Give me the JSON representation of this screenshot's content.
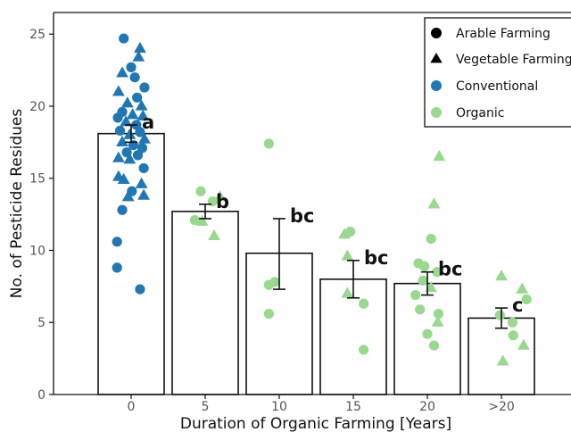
{
  "chart_data": {
    "type": "bar",
    "title": "",
    "xlabel": "Duration of Organic Farming [Years]",
    "ylabel": "No. of Pesticide Residues",
    "ylim": [
      0,
      26.5
    ],
    "yticks": [
      "0",
      "5",
      "10",
      "15",
      "20",
      "25"
    ],
    "categories": [
      "0",
      "5",
      "10",
      "15",
      "20",
      ">20"
    ],
    "values": [
      18.1,
      12.7,
      9.8,
      8.0,
      7.7,
      5.3
    ],
    "error_low": [
      17.5,
      12.2,
      7.3,
      6.7,
      6.9,
      4.6
    ],
    "error_high": [
      18.7,
      13.2,
      12.2,
      9.3,
      8.5,
      6.0
    ],
    "significance_labels": [
      "a",
      "b",
      "bc",
      "bc",
      "bc",
      "c"
    ],
    "legend": {
      "position": "top-right",
      "items": [
        {
          "label": "Arable Farming",
          "shape": "circle",
          "color": "#000000"
        },
        {
          "label": "Vegetable Farming",
          "shape": "triangle",
          "color": "#000000"
        },
        {
          "label": "Conventional",
          "shape": "circle",
          "color": "#1f77b4"
        },
        {
          "label": "Organic",
          "shape": "circle",
          "color": "#98d98e"
        }
      ]
    },
    "colors": {
      "conventional": "#1f77b4",
      "organic": "#98d98e"
    },
    "points": [
      {
        "x": "0",
        "offset": -0.1,
        "y": 24.7,
        "shape": "circle",
        "system": "conventional"
      },
      {
        "x": "0",
        "offset": 0.12,
        "y": 24.0,
        "shape": "triangle",
        "system": "conventional"
      },
      {
        "x": "0",
        "offset": 0.1,
        "y": 23.4,
        "shape": "triangle",
        "system": "conventional"
      },
      {
        "x": "0",
        "offset": 0.0,
        "y": 22.7,
        "shape": "circle",
        "system": "conventional"
      },
      {
        "x": "0",
        "offset": -0.12,
        "y": 22.3,
        "shape": "triangle",
        "system": "conventional"
      },
      {
        "x": "0",
        "offset": 0.05,
        "y": 22.0,
        "shape": "circle",
        "system": "conventional"
      },
      {
        "x": "0",
        "offset": 0.18,
        "y": 21.3,
        "shape": "circle",
        "system": "conventional"
      },
      {
        "x": "0",
        "offset": -0.17,
        "y": 21.0,
        "shape": "triangle",
        "system": "conventional"
      },
      {
        "x": "0",
        "offset": 0.08,
        "y": 20.6,
        "shape": "circle",
        "system": "conventional"
      },
      {
        "x": "0",
        "offset": -0.05,
        "y": 20.2,
        "shape": "triangle",
        "system": "conventional"
      },
      {
        "x": "0",
        "offset": 0.14,
        "y": 20.0,
        "shape": "triangle",
        "system": "conventional"
      },
      {
        "x": "0",
        "offset": -0.12,
        "y": 19.6,
        "shape": "circle",
        "system": "conventional"
      },
      {
        "x": "0",
        "offset": 0.02,
        "y": 19.4,
        "shape": "triangle",
        "system": "conventional"
      },
      {
        "x": "0",
        "offset": -0.18,
        "y": 19.2,
        "shape": "circle",
        "system": "conventional"
      },
      {
        "x": "0",
        "offset": 0.16,
        "y": 19.3,
        "shape": "triangle",
        "system": "conventional"
      },
      {
        "x": "0",
        "offset": -0.07,
        "y": 18.9,
        "shape": "triangle",
        "system": "conventional"
      },
      {
        "x": "0",
        "offset": 0.07,
        "y": 18.7,
        "shape": "circle",
        "system": "conventional"
      },
      {
        "x": "0",
        "offset": -0.15,
        "y": 18.3,
        "shape": "circle",
        "system": "conventional"
      },
      {
        "x": "0",
        "offset": 0.12,
        "y": 18.2,
        "shape": "circle",
        "system": "conventional"
      },
      {
        "x": "0",
        "offset": -0.02,
        "y": 18.0,
        "shape": "triangle",
        "system": "conventional"
      },
      {
        "x": "0",
        "offset": 0.18,
        "y": 17.7,
        "shape": "triangle",
        "system": "conventional"
      },
      {
        "x": "0",
        "offset": -0.12,
        "y": 17.5,
        "shape": "triangle",
        "system": "conventional"
      },
      {
        "x": "0",
        "offset": 0.03,
        "y": 17.3,
        "shape": "circle",
        "system": "conventional"
      },
      {
        "x": "0",
        "offset": 0.15,
        "y": 17.1,
        "shape": "circle",
        "system": "conventional"
      },
      {
        "x": "0",
        "offset": -0.06,
        "y": 16.8,
        "shape": "circle",
        "system": "conventional"
      },
      {
        "x": "0",
        "offset": 0.09,
        "y": 16.6,
        "shape": "circle",
        "system": "conventional"
      },
      {
        "x": "0",
        "offset": -0.17,
        "y": 16.4,
        "shape": "triangle",
        "system": "conventional"
      },
      {
        "x": "0",
        "offset": -0.02,
        "y": 16.3,
        "shape": "triangle",
        "system": "conventional"
      },
      {
        "x": "0",
        "offset": 0.17,
        "y": 15.7,
        "shape": "circle",
        "system": "conventional"
      },
      {
        "x": "0",
        "offset": -0.17,
        "y": 15.1,
        "shape": "triangle",
        "system": "conventional"
      },
      {
        "x": "0",
        "offset": -0.1,
        "y": 14.9,
        "shape": "triangle",
        "system": "conventional"
      },
      {
        "x": "0",
        "offset": 0.14,
        "y": 14.6,
        "shape": "triangle",
        "system": "conventional"
      },
      {
        "x": "0",
        "offset": 0.01,
        "y": 14.1,
        "shape": "circle",
        "system": "conventional"
      },
      {
        "x": "0",
        "offset": -0.04,
        "y": 13.7,
        "shape": "triangle",
        "system": "conventional"
      },
      {
        "x": "0",
        "offset": 0.17,
        "y": 13.8,
        "shape": "triangle",
        "system": "conventional"
      },
      {
        "x": "0",
        "offset": -0.12,
        "y": 12.8,
        "shape": "circle",
        "system": "conventional"
      },
      {
        "x": "0",
        "offset": -0.19,
        "y": 10.6,
        "shape": "circle",
        "system": "conventional"
      },
      {
        "x": "0",
        "offset": -0.19,
        "y": 8.8,
        "shape": "circle",
        "system": "conventional"
      },
      {
        "x": "0",
        "offset": 0.12,
        "y": 7.3,
        "shape": "circle",
        "system": "conventional"
      },
      {
        "x": "5",
        "offset": -0.06,
        "y": 14.1,
        "shape": "circle",
        "system": "organic"
      },
      {
        "x": "5",
        "offset": 0.2,
        "y": 13.7,
        "shape": "triangle",
        "system": "organic"
      },
      {
        "x": "5",
        "offset": 0.1,
        "y": 13.4,
        "shape": "circle",
        "system": "organic"
      },
      {
        "x": "5",
        "offset": -0.14,
        "y": 12.1,
        "shape": "circle",
        "system": "organic"
      },
      {
        "x": "5",
        "offset": -0.04,
        "y": 12.0,
        "shape": "triangle",
        "system": "organic"
      },
      {
        "x": "5",
        "offset": 0.12,
        "y": 11.0,
        "shape": "triangle",
        "system": "organic"
      },
      {
        "x": "10",
        "offset": -0.14,
        "y": 17.4,
        "shape": "circle",
        "system": "organic"
      },
      {
        "x": "10",
        "offset": -0.14,
        "y": 7.6,
        "shape": "circle",
        "system": "organic"
      },
      {
        "x": "10",
        "offset": -0.06,
        "y": 7.8,
        "shape": "circle",
        "system": "organic"
      },
      {
        "x": "10",
        "offset": -0.14,
        "y": 5.6,
        "shape": "circle",
        "system": "organic"
      },
      {
        "x": "15",
        "offset": -0.04,
        "y": 11.3,
        "shape": "circle",
        "system": "organic"
      },
      {
        "x": "15",
        "offset": -0.12,
        "y": 11.1,
        "shape": "triangle",
        "system": "organic"
      },
      {
        "x": "15",
        "offset": -0.08,
        "y": 9.6,
        "shape": "triangle",
        "system": "organic"
      },
      {
        "x": "15",
        "offset": -0.08,
        "y": 7.0,
        "shape": "triangle",
        "system": "organic"
      },
      {
        "x": "15",
        "offset": 0.14,
        "y": 6.3,
        "shape": "circle",
        "system": "organic"
      },
      {
        "x": "15",
        "offset": 0.14,
        "y": 3.1,
        "shape": "circle",
        "system": "organic"
      },
      {
        "x": "20",
        "offset": 0.16,
        "y": 16.5,
        "shape": "triangle",
        "system": "organic"
      },
      {
        "x": "20",
        "offset": 0.09,
        "y": 13.2,
        "shape": "triangle",
        "system": "organic"
      },
      {
        "x": "20",
        "offset": 0.05,
        "y": 10.8,
        "shape": "circle",
        "system": "organic"
      },
      {
        "x": "20",
        "offset": -0.12,
        "y": 9.1,
        "shape": "circle",
        "system": "organic"
      },
      {
        "x": "20",
        "offset": -0.04,
        "y": 8.9,
        "shape": "circle",
        "system": "organic"
      },
      {
        "x": "20",
        "offset": 0.13,
        "y": 8.5,
        "shape": "circle",
        "system": "organic"
      },
      {
        "x": "20",
        "offset": -0.06,
        "y": 7.9,
        "shape": "circle",
        "system": "organic"
      },
      {
        "x": "20",
        "offset": 0.05,
        "y": 7.4,
        "shape": "triangle",
        "system": "organic"
      },
      {
        "x": "20",
        "offset": -0.16,
        "y": 6.9,
        "shape": "circle",
        "system": "organic"
      },
      {
        "x": "20",
        "offset": -0.1,
        "y": 5.9,
        "shape": "circle",
        "system": "organic"
      },
      {
        "x": "20",
        "offset": 0.15,
        "y": 5.6,
        "shape": "circle",
        "system": "organic"
      },
      {
        "x": "20",
        "offset": 0.14,
        "y": 5.0,
        "shape": "triangle",
        "system": "organic"
      },
      {
        "x": "20",
        "offset": 0.0,
        "y": 4.2,
        "shape": "circle",
        "system": "organic"
      },
      {
        "x": "20",
        "offset": 0.09,
        "y": 3.4,
        "shape": "circle",
        "system": "organic"
      },
      {
        "x": "&gt;20",
        "offset": 0.05,
        "y": 0,
        "shape": "none",
        "system": "none"
      },
      {
        "x": ">20",
        "offset": 0.0,
        "y": 8.2,
        "shape": "triangle",
        "system": "organic"
      },
      {
        "x": ">20",
        "offset": 0.28,
        "y": 7.3,
        "shape": "triangle",
        "system": "organic"
      },
      {
        "x": ">20",
        "offset": 0.34,
        "y": 6.6,
        "shape": "circle",
        "system": "organic"
      },
      {
        "x": ">20",
        "offset": -0.02,
        "y": 5.5,
        "shape": "circle",
        "system": "organic"
      },
      {
        "x": ">20",
        "offset": 0.15,
        "y": 5.0,
        "shape": "circle",
        "system": "organic"
      },
      {
        "x": ">20",
        "offset": 0.16,
        "y": 4.1,
        "shape": "circle",
        "system": "organic"
      },
      {
        "x": ">20",
        "offset": 0.3,
        "y": 3.4,
        "shape": "triangle",
        "system": "organic"
      },
      {
        "x": ">20",
        "offset": 0.02,
        "y": 2.3,
        "shape": "triangle",
        "system": "organic"
      }
    ]
  }
}
